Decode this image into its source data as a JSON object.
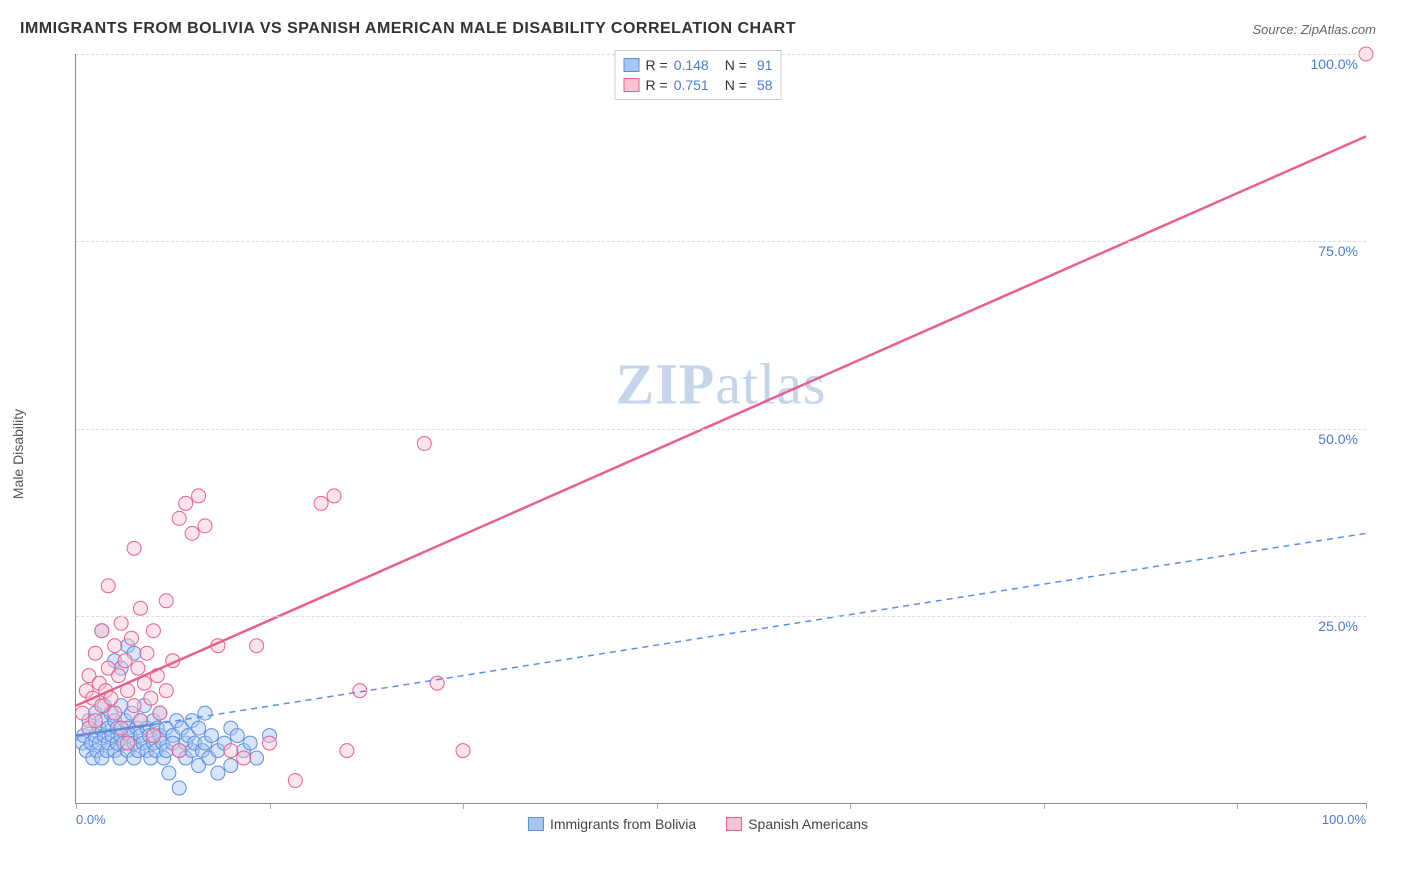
{
  "header": {
    "title": "IMMIGRANTS FROM BOLIVIA VS SPANISH AMERICAN MALE DISABILITY CORRELATION CHART",
    "source_prefix": "Source: ",
    "source": "ZipAtlas.com"
  },
  "yaxis": {
    "label": "Male Disability"
  },
  "watermark": "ZIPatlas",
  "chart": {
    "type": "scatter",
    "xlim": [
      0,
      100
    ],
    "ylim": [
      0,
      100
    ],
    "x_tick_positions": [
      0,
      15,
      30,
      45,
      60,
      75,
      90,
      100
    ],
    "x_tick_labels_shown": {
      "0": "0.0%",
      "100": "100.0%"
    },
    "y_grid": [
      25,
      50,
      75,
      100
    ],
    "y_tick_labels": {
      "25": "25.0%",
      "50": "50.0%",
      "75": "75.0%",
      "100": "100.0%"
    },
    "background_color": "#ffffff",
    "grid_color": "#dddddd",
    "axis_color": "#888888",
    "tick_label_color": "#4a7bd0",
    "marker_radius": 7,
    "marker_opacity": 0.45,
    "series": [
      {
        "name": "Immigrants from Bolivia",
        "color_fill": "#a9c6f0",
        "color_stroke": "#5b8fe0",
        "R": 0.148,
        "N": 91,
        "regression": {
          "x1": 0,
          "y1": 9,
          "x2": 100,
          "y2": 36,
          "dash": "6,5",
          "width": 1.5,
          "solid_segment_x2": 6,
          "solid_segment_y2": 10.5
        },
        "points": [
          [
            0.5,
            8
          ],
          [
            0.6,
            9
          ],
          [
            0.8,
            7
          ],
          [
            1,
            10
          ],
          [
            1,
            11
          ],
          [
            1.2,
            8
          ],
          [
            1.3,
            6
          ],
          [
            1.5,
            9
          ],
          [
            1.5,
            12
          ],
          [
            1.6,
            7
          ],
          [
            1.8,
            10
          ],
          [
            1.8,
            8
          ],
          [
            2,
            11
          ],
          [
            2,
            6
          ],
          [
            2.2,
            9
          ],
          [
            2.2,
            13
          ],
          [
            2.4,
            7
          ],
          [
            2.5,
            10
          ],
          [
            2.5,
            8
          ],
          [
            2.7,
            12
          ],
          [
            2.8,
            9
          ],
          [
            3,
            11
          ],
          [
            3,
            7
          ],
          [
            3.2,
            8
          ],
          [
            3.2,
            10
          ],
          [
            3.4,
            6
          ],
          [
            3.5,
            9
          ],
          [
            3.5,
            13
          ],
          [
            3.7,
            8
          ],
          [
            3.8,
            11
          ],
          [
            4,
            7
          ],
          [
            4,
            10
          ],
          [
            4.2,
            9
          ],
          [
            4.3,
            12
          ],
          [
            4.5,
            8
          ],
          [
            4.5,
            6
          ],
          [
            4.7,
            10
          ],
          [
            4.8,
            7
          ],
          [
            5,
            11
          ],
          [
            5,
            9
          ],
          [
            5.2,
            8
          ],
          [
            5.3,
            13
          ],
          [
            5.5,
            7
          ],
          [
            5.5,
            10
          ],
          [
            5.7,
            9
          ],
          [
            5.8,
            6
          ],
          [
            6,
            8
          ],
          [
            6,
            11
          ],
          [
            6.2,
            7
          ],
          [
            6.3,
            10
          ],
          [
            6.5,
            9
          ],
          [
            6.5,
            12
          ],
          [
            6.7,
            8
          ],
          [
            6.8,
            6
          ],
          [
            7,
            7
          ],
          [
            7,
            10
          ],
          [
            7.2,
            4
          ],
          [
            7.5,
            9
          ],
          [
            7.5,
            8
          ],
          [
            7.8,
            11
          ],
          [
            8,
            7
          ],
          [
            8,
            2
          ],
          [
            8.2,
            10
          ],
          [
            8.5,
            8
          ],
          [
            8.5,
            6
          ],
          [
            8.7,
            9
          ],
          [
            9,
            7
          ],
          [
            9,
            11
          ],
          [
            9.2,
            8
          ],
          [
            9.5,
            5
          ],
          [
            9.5,
            10
          ],
          [
            9.8,
            7
          ],
          [
            10,
            8
          ],
          [
            10,
            12
          ],
          [
            10.3,
            6
          ],
          [
            10.5,
            9
          ],
          [
            11,
            7
          ],
          [
            11,
            4
          ],
          [
            11.5,
            8
          ],
          [
            12,
            10
          ],
          [
            12,
            5
          ],
          [
            12.5,
            9
          ],
          [
            13,
            7
          ],
          [
            13.5,
            8
          ],
          [
            14,
            6
          ],
          [
            15,
            9
          ],
          [
            2,
            23
          ],
          [
            3,
            19
          ],
          [
            3.5,
            18
          ],
          [
            4,
            21
          ],
          [
            4.5,
            20
          ]
        ]
      },
      {
        "name": "Spanish Americans",
        "color_fill": "#f7c4d2",
        "color_stroke": "#ea5f8e",
        "R": 0.751,
        "N": 58,
        "regression": {
          "x1": 0,
          "y1": 13,
          "x2": 100,
          "y2": 89,
          "dash": null,
          "width": 2.5
        },
        "points": [
          [
            0.5,
            12
          ],
          [
            0.8,
            15
          ],
          [
            1,
            10
          ],
          [
            1,
            17
          ],
          [
            1.3,
            14
          ],
          [
            1.5,
            20
          ],
          [
            1.5,
            11
          ],
          [
            1.8,
            16
          ],
          [
            2,
            13
          ],
          [
            2,
            23
          ],
          [
            2.3,
            15
          ],
          [
            2.5,
            18
          ],
          [
            2.5,
            29
          ],
          [
            2.7,
            14
          ],
          [
            3,
            21
          ],
          [
            3,
            12
          ],
          [
            3.3,
            17
          ],
          [
            3.5,
            24
          ],
          [
            3.5,
            10
          ],
          [
            3.8,
            19
          ],
          [
            4,
            15
          ],
          [
            4,
            8
          ],
          [
            4.3,
            22
          ],
          [
            4.5,
            13
          ],
          [
            4.5,
            34
          ],
          [
            4.8,
            18
          ],
          [
            5,
            11
          ],
          [
            5,
            26
          ],
          [
            5.3,
            16
          ],
          [
            5.5,
            20
          ],
          [
            5.8,
            14
          ],
          [
            6,
            23
          ],
          [
            6,
            9
          ],
          [
            6.3,
            17
          ],
          [
            6.5,
            12
          ],
          [
            7,
            27
          ],
          [
            7,
            15
          ],
          [
            7.5,
            19
          ],
          [
            8,
            7
          ],
          [
            8,
            38
          ],
          [
            8.5,
            40
          ],
          [
            9,
            36
          ],
          [
            9.5,
            41
          ],
          [
            10,
            37
          ],
          [
            11,
            21
          ],
          [
            12,
            7
          ],
          [
            13,
            6
          ],
          [
            14,
            21
          ],
          [
            15,
            8
          ],
          [
            17,
            3
          ],
          [
            19,
            40
          ],
          [
            20,
            41
          ],
          [
            21,
            7
          ],
          [
            22,
            15
          ],
          [
            27,
            48
          ],
          [
            28,
            16
          ],
          [
            30,
            7
          ],
          [
            100,
            100
          ]
        ]
      }
    ]
  },
  "legend_stats": {
    "rows": [
      {
        "swatch_fill": "#a9c6f0",
        "swatch_stroke": "#5b8fe0",
        "r_label": "R =",
        "r_val": "0.148",
        "n_label": "N =",
        "n_val": "91"
      },
      {
        "swatch_fill": "#f7c4d2",
        "swatch_stroke": "#ea5f8e",
        "r_label": "R =",
        "r_val": "0.751",
        "n_label": "N =",
        "n_val": "58"
      }
    ]
  },
  "bottom_legend": {
    "items": [
      {
        "swatch_fill": "#a9c6f0",
        "swatch_stroke": "#5b8fe0",
        "label": "Immigrants from Bolivia"
      },
      {
        "swatch_fill": "#f7c4d2",
        "swatch_stroke": "#ea5f8e",
        "label": "Spanish Americans"
      }
    ]
  }
}
